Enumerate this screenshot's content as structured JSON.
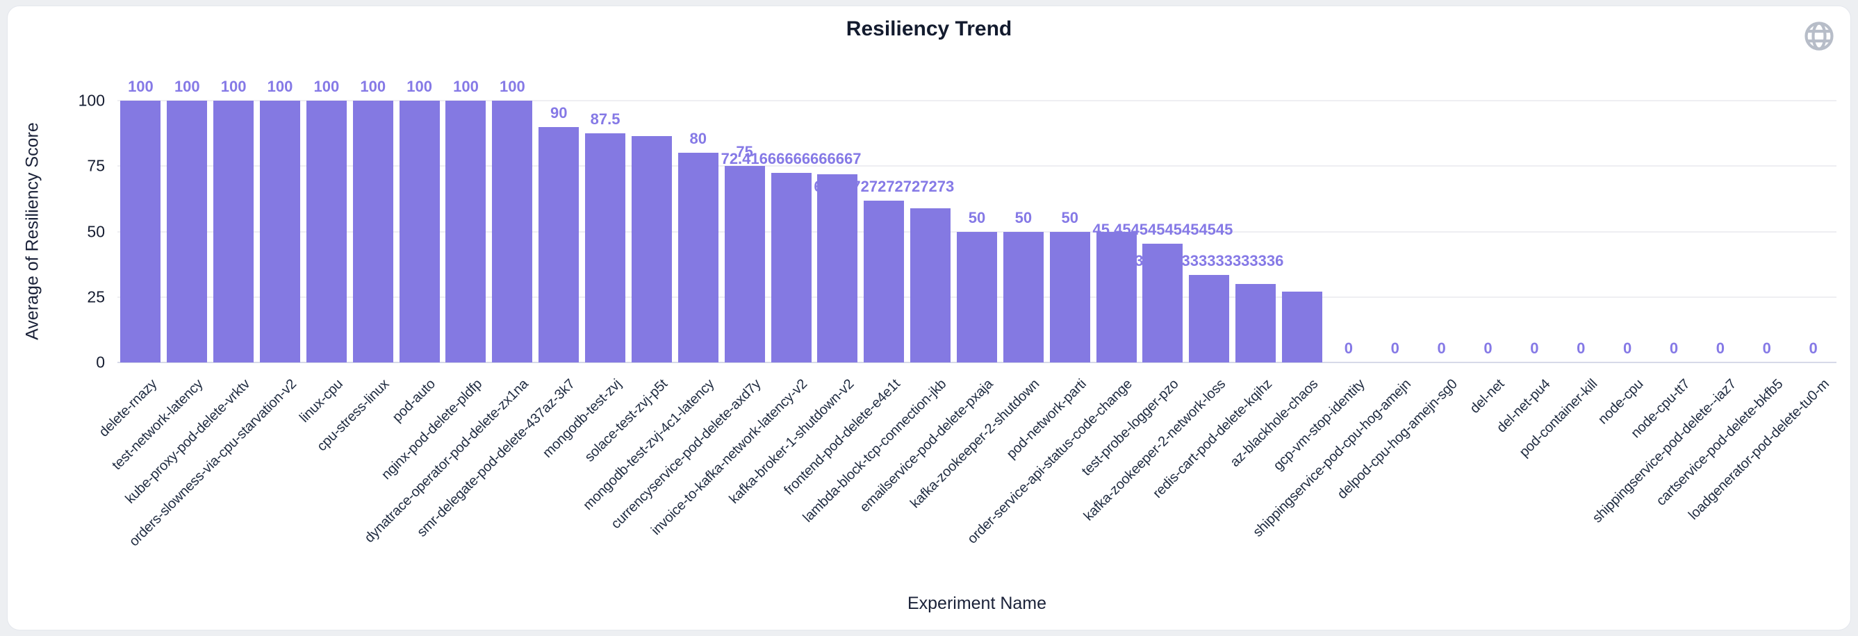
{
  "header": {
    "title": "Resiliency Trend"
  },
  "icons": {
    "globe": "globe-icon",
    "globe_color": "#b7bdc8"
  },
  "chart_data": {
    "type": "bar",
    "title": "Resiliency Trend",
    "xlabel": "Experiment Name",
    "ylabel": "Average of Resiliency Score",
    "ylim": [
      0,
      100
    ],
    "yticks": [
      0,
      25,
      50,
      75,
      100
    ],
    "grid": true,
    "legend": "none",
    "bar_color": "#8479e2",
    "value_label_color": "#8579e6",
    "categories": [
      "delete-rnazy",
      "test-network-latency",
      "kube-proxy-pod-delete-vrktv",
      "orders-slowness-via-cpu-starvation-v2",
      "linux-cpu",
      "cpu-stress-linux",
      "pod-auto",
      "nginx-pod-delete-pldfp",
      "dynatrace-operator-pod-delete-zx1na",
      "smr-delegate-pod-delete-437az-3k7",
      "mongodb-test-zvj",
      "solace-test-zvj-p5t",
      "mongodb-test-zvj-4c1-latency",
      "currencyservice-pod-delete-axd7y",
      "invoice-to-kafka-network-latency-v2",
      "kafka-broker-1-shutdown-v2",
      "frontend-pod-delete-e4e1t",
      "lambda-block-tcp-connection-jkb",
      "emailservice-pod-delete-pxaja",
      "kafka-zookeeper-2-shutdown",
      "pod-network-parti",
      "order-service-api-status-code-change",
      "test-probe-logger-pzo",
      "kafka-zookeeper-2-network-loss",
      "redis-cart-pod-delete-kqihz",
      "az-blackhole-chaos",
      "gcp-vm-stop-identity",
      "shippingservice-pod-cpu-hog-amejn",
      "delpod-cpu-hog-amejn-sg0",
      "del-net",
      "del-net-pu4",
      "pod-container-kill",
      "node-cpu",
      "node-cpu-tt7",
      "shippingservice-pod-delete--iaz7",
      "cartservice-pod-delete-bkfb5",
      "loadgenerator-pod-delete-tu0-m"
    ],
    "values": [
      100,
      100,
      100,
      100,
      100,
      100,
      100,
      100,
      100,
      90,
      87.5,
      86.5,
      80,
      75,
      72.41666666666667,
      72,
      61.72727272727273,
      58.9,
      50,
      50,
      50,
      50,
      45.45454545454545,
      33.333333333333336,
      30,
      27,
      0,
      0,
      0,
      0,
      0,
      0,
      0,
      0,
      0,
      0,
      0
    ],
    "value_labels": [
      "100",
      "100",
      "100",
      "100",
      "100",
      "100",
      "100",
      "100",
      "100",
      "90",
      "87.5",
      "",
      "80",
      "75",
      "72.41666666666667",
      "",
      "61.72727272727273",
      "",
      "50",
      "50",
      "50",
      "",
      "45.45454545454545",
      "33.333333333333336",
      "",
      "",
      "0",
      "0",
      "0",
      "0",
      "0",
      "0",
      "0",
      "0",
      "0",
      "0",
      "0"
    ]
  }
}
